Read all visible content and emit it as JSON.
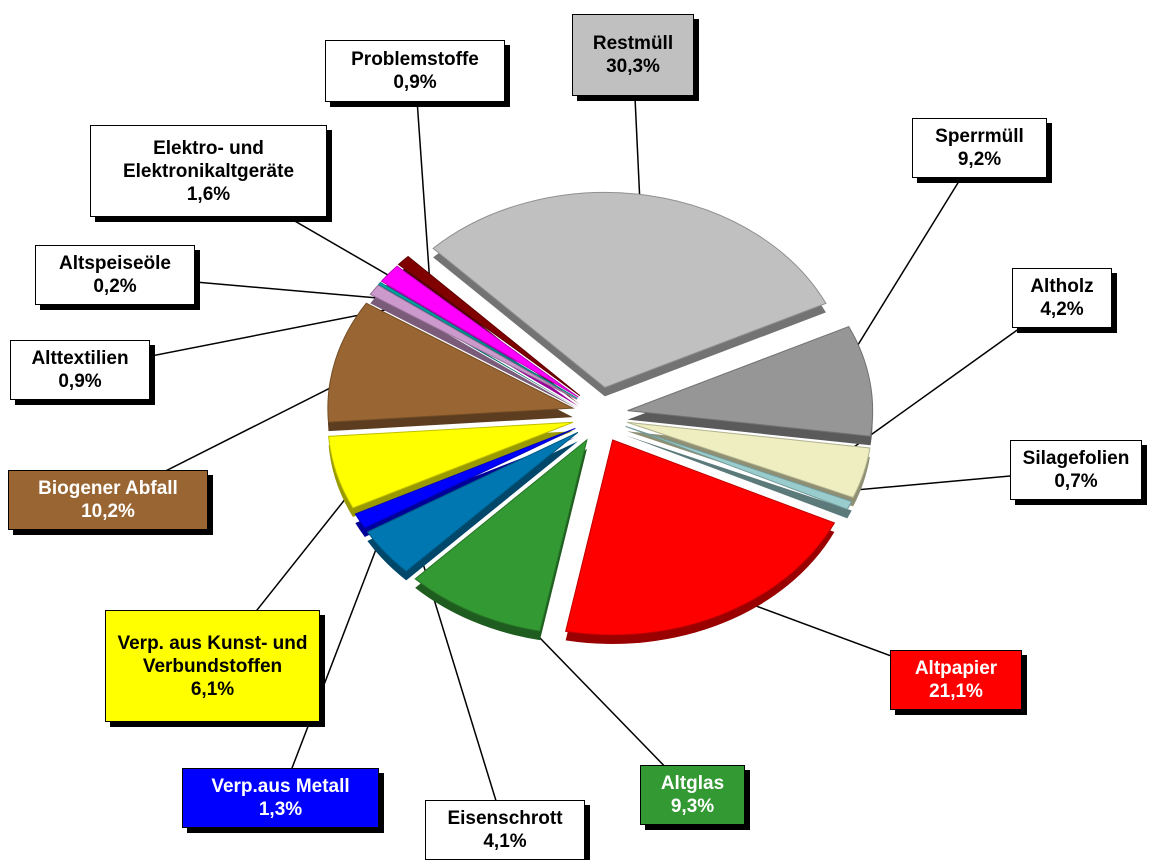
{
  "chart_data": {
    "type": "pie",
    "categories": [
      "Restmüll",
      "Sperrmüll",
      "Altholz",
      "Silagefolien",
      "Altpapier",
      "Altglas",
      "Eisenschrott",
      "Verp.aus Metall",
      "Verp. aus Kunst- und Verbundstoffen",
      "Biogener Abfall",
      "Alttextilien",
      "Altspeiseöle",
      "Elektro- und Elektronikaltgeräte",
      "Problemstoffe"
    ],
    "values": [
      30.3,
      9.2,
      4.2,
      0.7,
      21.1,
      9.3,
      4.1,
      1.3,
      6.1,
      10.2,
      0.9,
      0.2,
      1.6,
      0.9
    ],
    "value_labels": [
      "30,3%",
      "9,2%",
      "4,2%",
      "0,7%",
      "21,1%",
      "9,3%",
      "4,1%",
      "1,3%",
      "6,1%",
      "10,2%",
      "0,9%",
      "0,2%",
      "1,6%",
      "0,9%"
    ],
    "colors": [
      "#c0c0c0",
      "#969696",
      "#eeeec0",
      "#99cccc",
      "#ff0000",
      "#339933",
      "#0077b0",
      "#0000ff",
      "#ffff00",
      "#996633",
      "#cc99cc",
      "#00aaaa",
      "#ff00ff",
      "#800000"
    ],
    "label_fill": [
      "#c0c0c0",
      "#ffffff",
      "#ffffff",
      "#ffffff",
      "#ff0000",
      "#339933",
      "#ffffff",
      "#0000ff",
      "#ffff00",
      "#996633",
      "#ffffff",
      "#ffffff",
      "#ffffff",
      "#ffffff"
    ]
  }
}
